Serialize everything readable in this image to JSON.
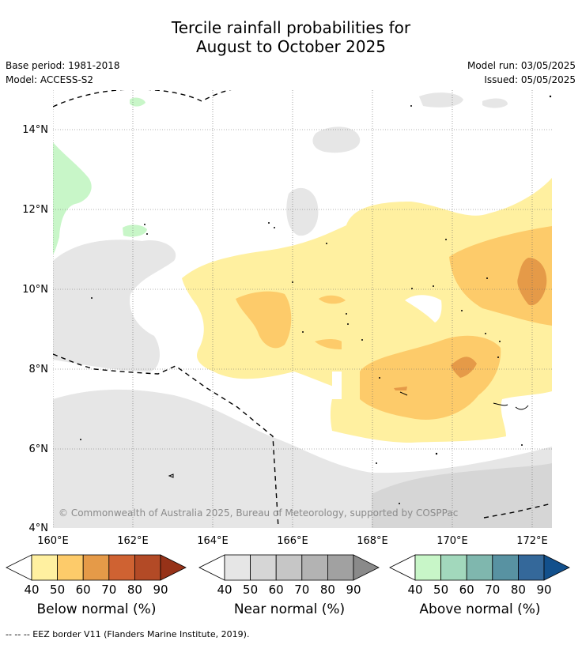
{
  "title_line1": "Tercile rainfall probabilities for",
  "title_line2": "August to October 2025",
  "meta_left": [
    "Base period: 1981-2018",
    "Model: ACCESS-S2"
  ],
  "meta_right": [
    "Model run: 03/05/2025",
    "Issued: 05/05/2025"
  ],
  "map": {
    "lon_ticks": [
      "160°E",
      "162°E",
      "164°E",
      "166°E",
      "168°E",
      "170°E",
      "172°E"
    ],
    "lat_ticks": [
      "14°N",
      "12°N",
      "10°N",
      "8°N",
      "6°N",
      "4°N"
    ],
    "copyright": "© Commonwealth of Australia 2025, Bureau of Meteorology, supported by COSPPac"
  },
  "colorbars": [
    {
      "label": "Below normal (%)",
      "ticks": [
        "40",
        "50",
        "60",
        "70",
        "80",
        "90"
      ],
      "colors": [
        "#fff0a0",
        "#fdcb6a",
        "#e59a48",
        "#cf6232",
        "#b34a26",
        "#963218"
      ]
    },
    {
      "label": "Near normal (%)",
      "ticks": [
        "40",
        "50",
        "60",
        "70",
        "80",
        "90"
      ],
      "colors": [
        "#e6e6e6",
        "#d6d6d6",
        "#c6c6c6",
        "#b3b3b3",
        "#a1a1a1",
        "#8a8a8a"
      ]
    },
    {
      "label": "Above normal (%)",
      "ticks": [
        "40",
        "50",
        "60",
        "70",
        "80",
        "90"
      ],
      "colors": [
        "#c8f6c8",
        "#a2d8bc",
        "#7fb7ae",
        "#5892a2",
        "#34689a",
        "#12508c"
      ]
    }
  ],
  "footnote": "-- -- -- EEZ border V11 (Flanders Marine Institute, 2019)."
}
